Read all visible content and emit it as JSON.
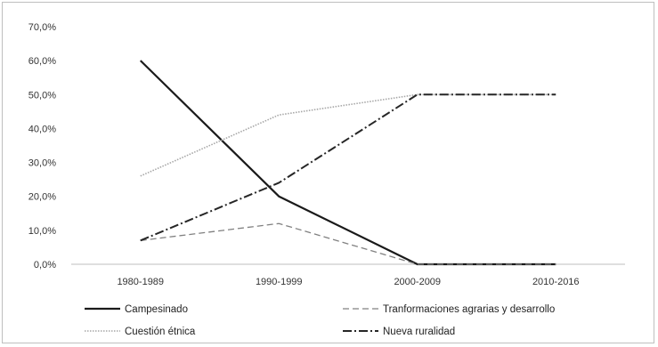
{
  "chart_data": {
    "type": "line",
    "categories": [
      "1980-1989",
      "1990-1999",
      "2000-2009",
      "2010-2016"
    ],
    "y_ticks": [
      "0,0%",
      "10,0%",
      "20,0%",
      "30,0%",
      "40,0%",
      "50,0%",
      "60,0%",
      "70,0%"
    ],
    "ylim": [
      0,
      70
    ],
    "grid": false,
    "legend_position": "bottom",
    "series": [
      {
        "name": "Campesinado",
        "values": [
          60,
          20,
          0,
          0
        ],
        "color": "#1a1a1a",
        "style": "solid"
      },
      {
        "name": "Tranformaciones agrarias y desarrollo",
        "values": [
          7,
          12,
          0,
          0
        ],
        "color": "#808080",
        "style": "dashed"
      },
      {
        "name": "Cuestión étnica",
        "values": [
          26,
          44,
          50,
          50
        ],
        "color": "#a6a6a6",
        "style": "dotted"
      },
      {
        "name": "Nueva ruralidad",
        "values": [
          7,
          24,
          50,
          50
        ],
        "color": "#262626",
        "style": "dashdot"
      }
    ]
  }
}
